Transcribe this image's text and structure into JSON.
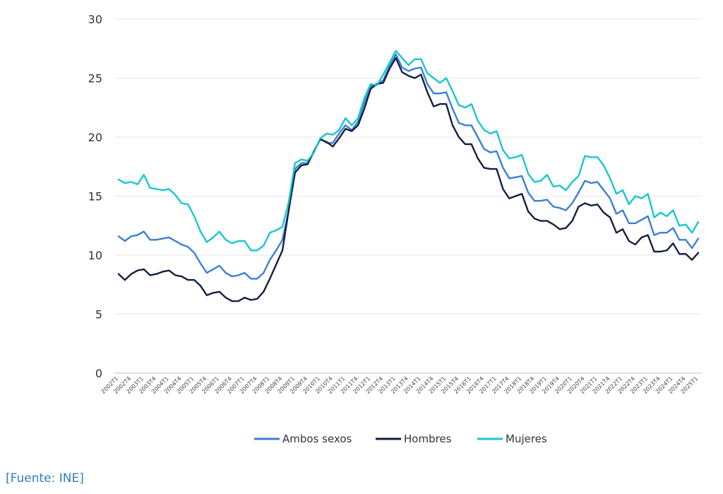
{
  "chart_data": {
    "type": "line",
    "title": "",
    "xlabel": "",
    "ylabel": "",
    "ylim": [
      0,
      30
    ],
    "yticks": [
      0,
      5,
      10,
      15,
      20,
      25,
      30
    ],
    "grid": "horizontal",
    "legend_position": "bottom",
    "x_tick_labels": [
      "2002T1",
      "2002T4",
      "2003T1",
      "2003T4",
      "2004T1",
      "2004T4",
      "2005T1",
      "2005T4",
      "2006T1",
      "2006T4",
      "2007T1",
      "2007T4",
      "2008T1",
      "2008T4",
      "2009T1",
      "2009T4",
      "2010T1",
      "2010T4",
      "2011T1",
      "2011T4",
      "2012T1",
      "2012T4",
      "2013T1",
      "2013T4",
      "2014T1",
      "2014T4",
      "2015T1",
      "2015T4",
      "2016T1",
      "2016T4",
      "2017T1",
      "2017T4",
      "2018T1",
      "2018T4",
      "2019T1",
      "2019T4",
      "2020T1",
      "2020T4",
      "2021T1",
      "2021T4",
      "2022T1",
      "2022T4",
      "2023T1",
      "2023T4",
      "2024T1",
      "2024T4",
      "2025T1"
    ],
    "series": [
      {
        "name": "Ambos sexos",
        "color": "#3a7fd6",
        "values": [
          11.6,
          11.2,
          11.6,
          11.7,
          12.0,
          11.3,
          11.3,
          11.4,
          11.5,
          11.2,
          10.9,
          10.7,
          10.2,
          9.3,
          8.5,
          8.8,
          9.1,
          8.5,
          8.2,
          8.3,
          8.5,
          8.0,
          8.0,
          8.5,
          9.6,
          10.4,
          11.3,
          13.8,
          17.3,
          17.8,
          17.8,
          18.7,
          19.9,
          19.5,
          19.5,
          20.3,
          21.0,
          20.6,
          21.3,
          22.9,
          24.3,
          24.5,
          24.8,
          26.0,
          27.0,
          25.9,
          25.6,
          25.8,
          25.9,
          24.5,
          23.7,
          23.7,
          23.8,
          22.4,
          21.2,
          21.0,
          21.0,
          20.0,
          19.0,
          18.7,
          18.8,
          17.4,
          16.5,
          16.6,
          16.7,
          15.3,
          14.6,
          14.6,
          14.7,
          14.1,
          14.0,
          13.8,
          14.4,
          15.3,
          16.3,
          16.1,
          16.2,
          15.5,
          14.8,
          13.5,
          13.8,
          12.7,
          12.7,
          13.0,
          13.3,
          11.7,
          11.9,
          11.9,
          12.3,
          11.3,
          11.3,
          10.6,
          11.4
        ]
      },
      {
        "name": "Hombres",
        "color": "#141f3f",
        "values": [
          8.4,
          7.9,
          8.4,
          8.7,
          8.8,
          8.3,
          8.4,
          8.6,
          8.7,
          8.3,
          8.2,
          7.9,
          7.9,
          7.4,
          6.6,
          6.8,
          6.9,
          6.4,
          6.1,
          6.1,
          6.4,
          6.2,
          6.3,
          6.9,
          8.0,
          9.2,
          10.4,
          13.8,
          17.0,
          17.6,
          17.7,
          18.8,
          19.8,
          19.6,
          19.2,
          19.9,
          20.7,
          20.5,
          21.0,
          22.4,
          24.1,
          24.5,
          24.6,
          25.8,
          26.7,
          25.5,
          25.2,
          25.0,
          25.3,
          23.8,
          22.6,
          22.8,
          22.8,
          21.0,
          20.0,
          19.4,
          19.4,
          18.2,
          17.4,
          17.3,
          17.3,
          15.6,
          14.8,
          15.0,
          15.2,
          13.7,
          13.1,
          12.9,
          12.9,
          12.6,
          12.2,
          12.3,
          12.9,
          14.1,
          14.4,
          14.2,
          14.3,
          13.6,
          13.2,
          11.9,
          12.2,
          11.2,
          10.9,
          11.5,
          11.7,
          10.3,
          10.3,
          10.4,
          11.0,
          10.1,
          10.1,
          9.6,
          10.2
        ]
      },
      {
        "name": "Mujeres",
        "color": "#19c5d1",
        "values": [
          16.4,
          16.1,
          16.2,
          16.0,
          16.8,
          15.7,
          15.6,
          15.5,
          15.6,
          15.1,
          14.4,
          14.3,
          13.3,
          12.0,
          11.1,
          11.5,
          12.0,
          11.3,
          11.0,
          11.2,
          11.2,
          10.4,
          10.4,
          10.8,
          11.9,
          12.1,
          12.4,
          14.5,
          17.8,
          18.1,
          18.0,
          18.7,
          19.9,
          20.3,
          20.2,
          20.6,
          21.6,
          21.0,
          21.6,
          23.3,
          24.5,
          24.4,
          25.3,
          26.3,
          27.3,
          26.7,
          26.1,
          26.6,
          26.6,
          25.4,
          25.0,
          24.6,
          25.0,
          23.9,
          22.7,
          22.5,
          22.8,
          21.4,
          20.6,
          20.3,
          20.5,
          18.9,
          18.2,
          18.3,
          18.5,
          16.9,
          16.2,
          16.3,
          16.8,
          15.8,
          15.9,
          15.5,
          16.2,
          16.7,
          18.4,
          18.3,
          18.3,
          17.6,
          16.5,
          15.2,
          15.5,
          14.3,
          15.0,
          14.8,
          15.2,
          13.2,
          13.6,
          13.3,
          13.8,
          12.5,
          12.6,
          11.9,
          12.8
        ]
      }
    ]
  },
  "footer": {
    "source": "[Fuente: INE]"
  }
}
